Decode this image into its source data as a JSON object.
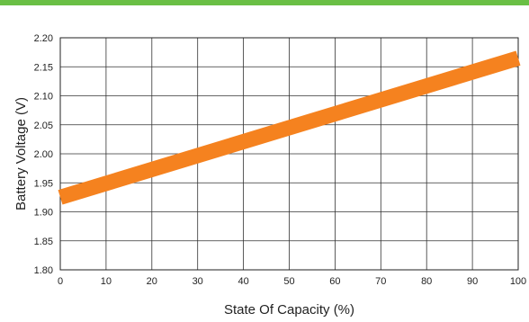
{
  "header": {
    "bar_color": "#6abf45"
  },
  "chart_data": {
    "type": "line",
    "title": "",
    "xlabel": "State Of Capacity (%)",
    "ylabel": "Battery Voltage (V)",
    "xlim": [
      0,
      100
    ],
    "ylim": [
      1.8,
      2.2
    ],
    "x_ticks": [
      0,
      10,
      20,
      30,
      40,
      50,
      60,
      70,
      80,
      90,
      100
    ],
    "y_ticks": [
      "1.80",
      "1.85",
      "1.90",
      "1.95",
      "2.00",
      "2.05",
      "2.10",
      "2.15",
      "2.20"
    ],
    "grid": true,
    "series": [
      {
        "color": "#f5821f",
        "x": [
          0,
          100
        ],
        "y": [
          1.925,
          2.165
        ]
      }
    ]
  }
}
